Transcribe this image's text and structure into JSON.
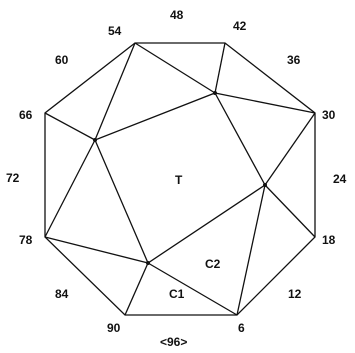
{
  "outer_labels": {
    "v54": "54",
    "e48": "48",
    "v42": "42",
    "e36": "36",
    "v30": "30",
    "e24": "24",
    "v18": "18",
    "e12": "12",
    "v6": "6",
    "e96": "<96>",
    "v90": "90",
    "e84": "84",
    "v78": "78",
    "e72": "72",
    "v66": "66",
    "e60": "60"
  },
  "region_labels": {
    "center": "T",
    "c1": "C1",
    "c2": "C2"
  },
  "colors": {
    "stroke": "#111111",
    "background": "#ffffff"
  }
}
